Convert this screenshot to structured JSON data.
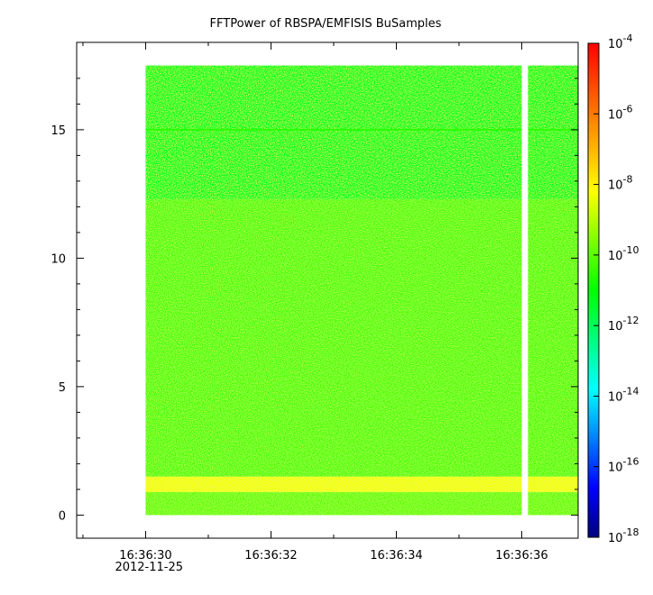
{
  "chart_data": {
    "type": "heatmap",
    "title": "FFTPower of RBSPA/EMFISIS  BuSamples",
    "xlabel": "",
    "ylabel": "",
    "x_ticks": [
      {
        "value": "16:36:30",
        "label": "16:36:30",
        "sublabel": "2012-11-25"
      },
      {
        "value": "16:36:32",
        "label": "16:36:32"
      },
      {
        "value": "16:36:34",
        "label": "16:36:34"
      },
      {
        "value": "16:36:36",
        "label": "16:36:36"
      }
    ],
    "x_minor_tick_seconds": [
      29,
      31,
      33,
      35,
      37
    ],
    "xlim": [
      "16:36:28.9",
      "16:36:36.9"
    ],
    "y_ticks": [
      0,
      5,
      10,
      15
    ],
    "y_minor_ticks": [
      1,
      2,
      3,
      4,
      6,
      7,
      8,
      9,
      11,
      12,
      13,
      14,
      16,
      17
    ],
    "ylim": [
      -0.9,
      18.4
    ],
    "data_x_range": [
      "16:36:30.0",
      "16:36:36.9"
    ],
    "data_y_range": [
      0,
      17.5
    ],
    "data_gaps": [
      {
        "x_start": "16:36:36.0",
        "x_end": "16:36:36.1"
      }
    ],
    "frequency_bands": [
      {
        "y_from": 0.0,
        "y_to": 0.9,
        "log10_power": -10.0
      },
      {
        "y_from": 0.9,
        "y_to": 1.5,
        "log10_power": -8.3
      },
      {
        "y_from": 1.5,
        "y_to": 12.3,
        "log10_power": -10.2
      },
      {
        "y_from": 12.3,
        "y_to": 17.5,
        "log10_power": -11.3
      }
    ],
    "line_features": [
      {
        "y": 15.0,
        "log10_power": -10.5
      }
    ],
    "colorbar": {
      "scale": "log",
      "range": [
        1e-18,
        0.0001
      ],
      "tick_exponents": [
        -18,
        -16,
        -14,
        -12,
        -10,
        -8,
        -6,
        -4
      ],
      "tick_base": "10",
      "colormap": [
        "#00007f",
        "#0000ff",
        "#007fff",
        "#00ffff",
        "#00ff7f",
        "#00ff00",
        "#7fff00",
        "#ffff00",
        "#ffaa00",
        "#ff5500",
        "#ff0000"
      ]
    },
    "grid": false
  }
}
